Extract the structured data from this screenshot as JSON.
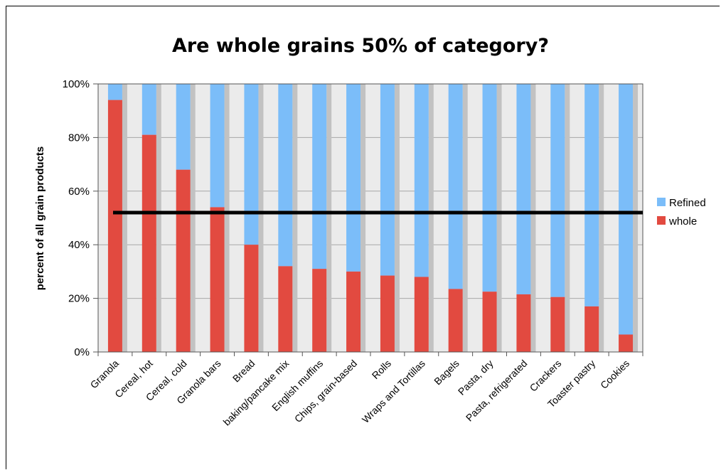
{
  "chart_data": {
    "type": "bar",
    "stacked": true,
    "title": "Are whole grains 50% of category?",
    "xlabel": "",
    "ylabel": "percent of all grain products",
    "ylim": [
      0,
      100
    ],
    "yticks": [
      "0%",
      "20%",
      "40%",
      "60%",
      "80%",
      "100%"
    ],
    "grid": true,
    "legend_position": "right",
    "categories": [
      "Granola",
      "Cereal, hot",
      "Cereal, cold",
      "Granola bars",
      "Bread",
      "baking/pancake mix",
      "English muffins",
      "Chips, grain-based",
      "Rolls",
      "Wraps and Tortillas",
      "Bagels",
      "Pasta, dry",
      "Pasta, refrigerated",
      "Crackers",
      "Toaster pastry",
      "Cookies"
    ],
    "series": [
      {
        "name": "whole",
        "color": "#e24a40",
        "values": [
          94,
          81,
          68,
          54,
          40,
          32,
          31,
          30,
          28.5,
          28,
          23.5,
          22.5,
          21.5,
          20.5,
          17,
          6.5
        ]
      },
      {
        "name": "Refined",
        "color": "#7bbdf9",
        "values": [
          6,
          19,
          32,
          46,
          60,
          68,
          69,
          70,
          71.5,
          72,
          76.5,
          77.5,
          78.5,
          79.5,
          83,
          93.5
        ]
      }
    ],
    "legend_order": [
      "Refined",
      "whole"
    ],
    "reference_line": {
      "value": 52,
      "color": "#000000"
    },
    "colors": {
      "plot_background": "#ebebeb",
      "bar_shadow": "#c2c2c2",
      "gridline": "#a8a8a8"
    }
  }
}
